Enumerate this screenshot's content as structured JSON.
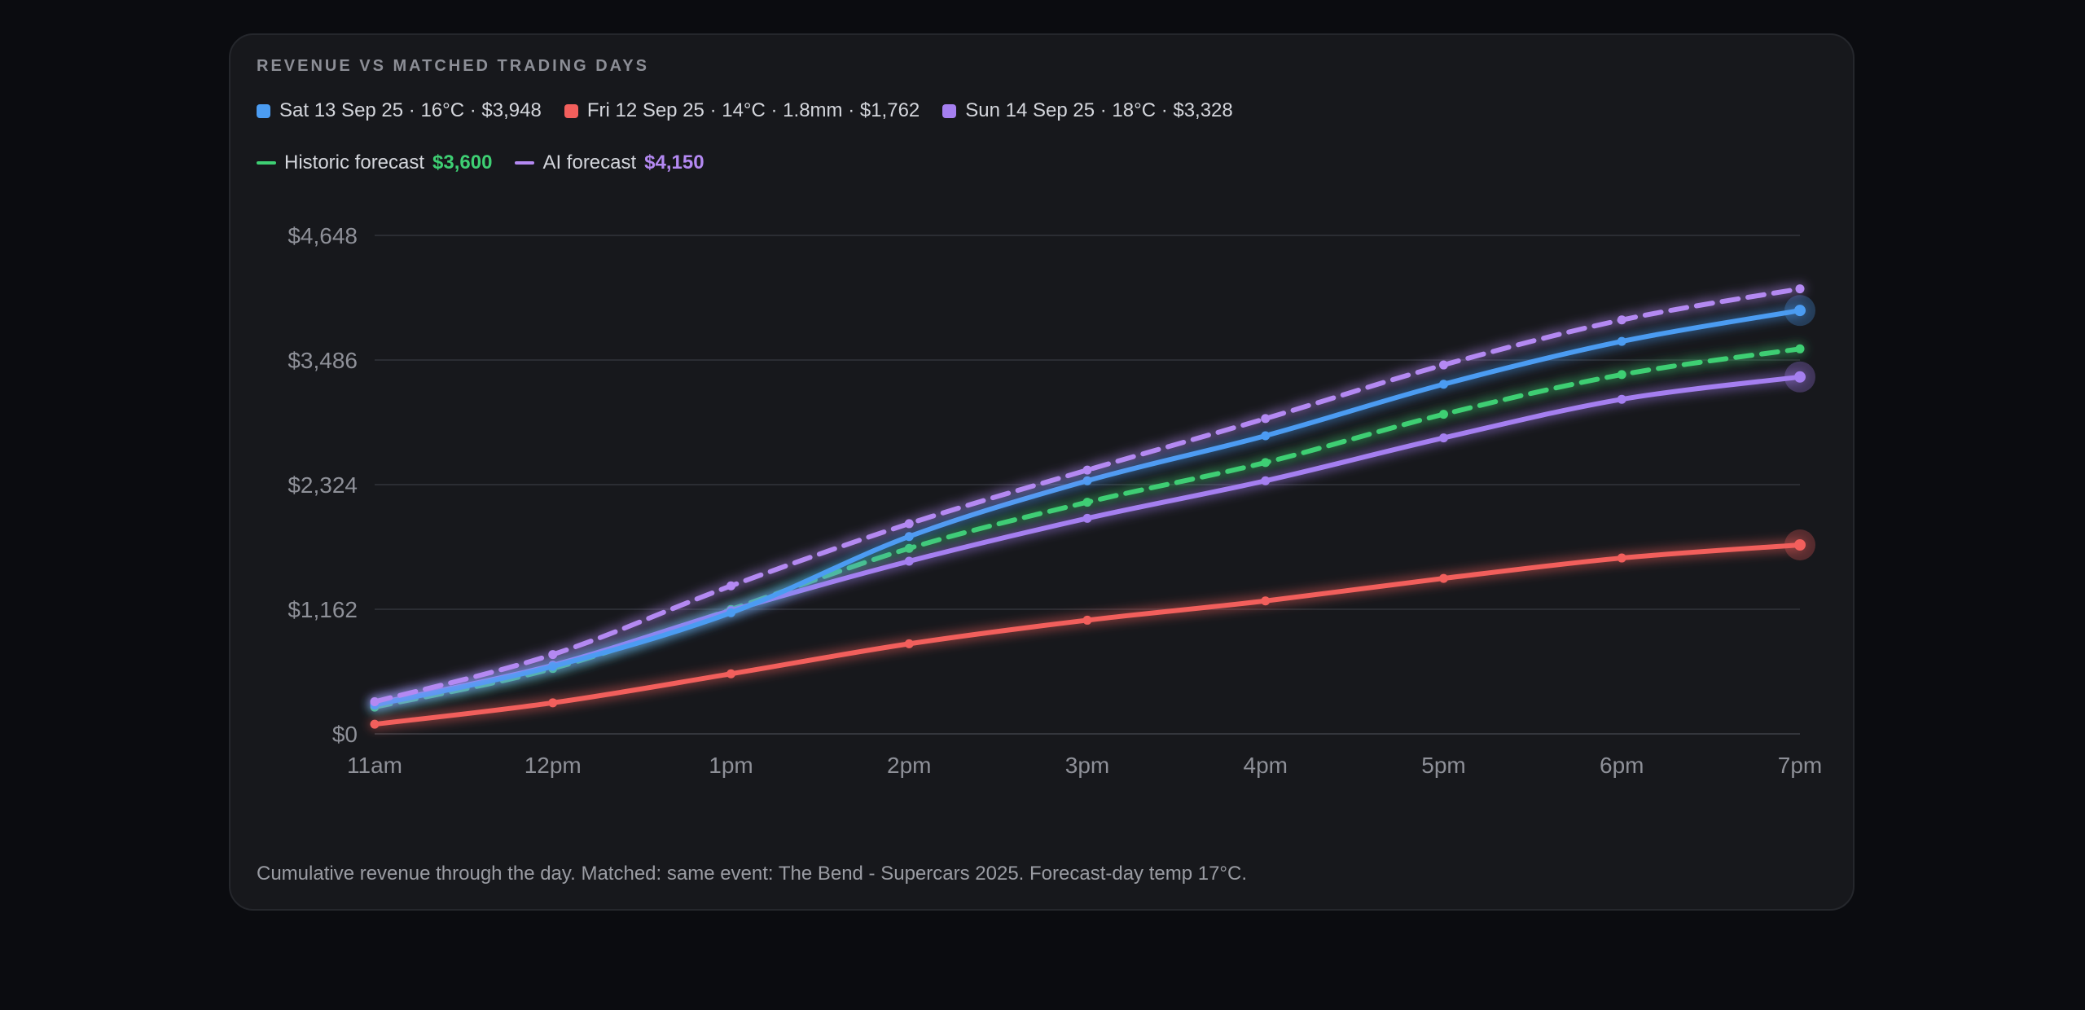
{
  "chart_data": {
    "type": "line",
    "title": "REVENUE VS MATCHED TRADING DAYS",
    "x": [
      "11am",
      "12pm",
      "1pm",
      "2pm",
      "3pm",
      "4pm",
      "5pm",
      "6pm",
      "7pm"
    ],
    "yticks": [
      "$0",
      "$1,162",
      "$2,324",
      "$3,486",
      "$4,648"
    ],
    "ylim": [
      0,
      4648
    ],
    "grid": true,
    "legend_position": "top-left",
    "series": [
      {
        "name": "Sat 13 Sep 25 · 16°C · $3,948",
        "color": "#4b9cf2",
        "style": "solid",
        "values": [
          270,
          630,
          1130,
          1840,
          2360,
          2780,
          3260,
          3660,
          3948
        ]
      },
      {
        "name": "Fri 12 Sep 25 · 14°C · 1.8mm · $1,762",
        "color": "#f25f5c",
        "style": "solid",
        "values": [
          90,
          290,
          560,
          840,
          1060,
          1240,
          1450,
          1640,
          1762
        ]
      },
      {
        "name": "Sun 14 Sep 25 · 18°C · $3,328",
        "color": "#a57ff0",
        "style": "solid",
        "values": [
          280,
          640,
          1150,
          1610,
          2010,
          2360,
          2760,
          3120,
          3328
        ]
      }
    ],
    "forecasts": [
      {
        "name": "Historic forecast",
        "value": "$3,600",
        "color": "#3ecf73",
        "style": "dashed",
        "values": [
          250,
          610,
          1160,
          1730,
          2160,
          2530,
          2980,
          3350,
          3590
        ]
      },
      {
        "name": "AI forecast",
        "value": "$4,150",
        "color": "#b489f2",
        "style": "dashed",
        "values": [
          300,
          740,
          1380,
          1960,
          2460,
          2940,
          3440,
          3860,
          4150
        ]
      }
    ]
  },
  "caption": "Cumulative revenue through the day. Matched: same event: The Bend - Supercars 2025. Forecast-day temp 17°C."
}
